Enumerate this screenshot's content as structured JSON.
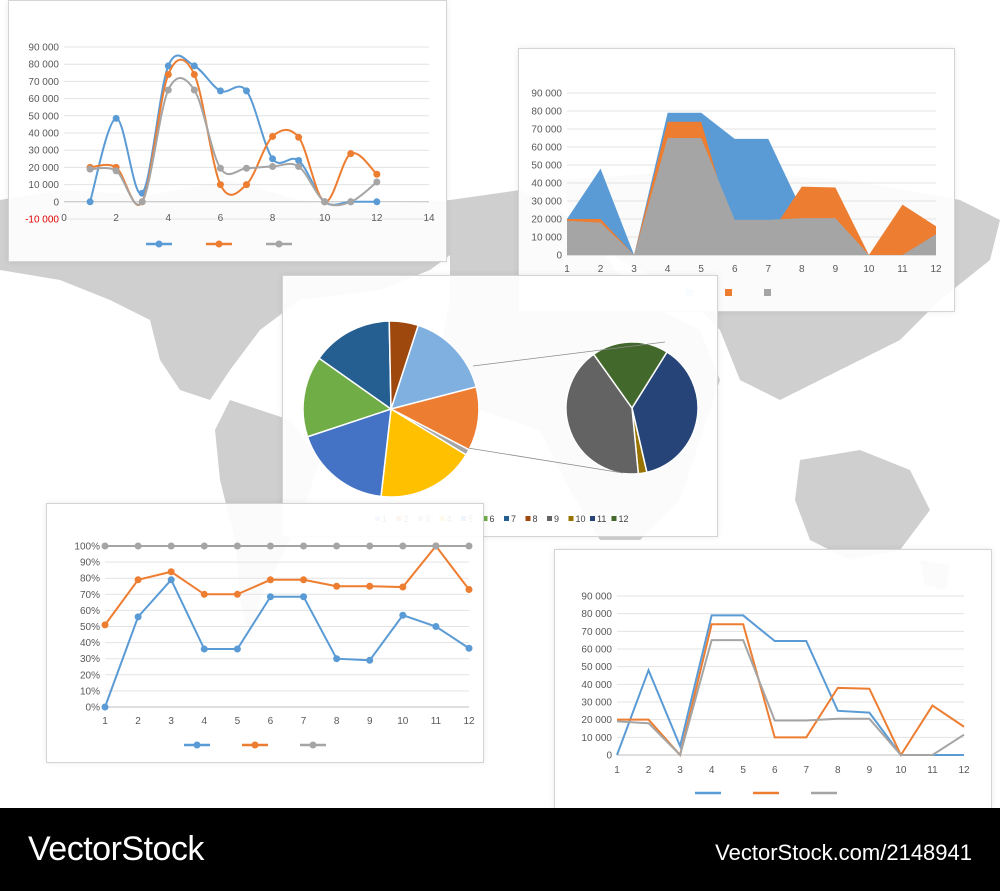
{
  "footer": {
    "brand": "VectorStock",
    "credit": "VectorStock.com/2148941"
  },
  "colors": {
    "blue": "#5b9bd5",
    "orange": "#ed7d31",
    "gray": "#a5a5a5"
  },
  "chart_data": [
    {
      "id": "smooth",
      "type": "scatter",
      "smooth": true,
      "x": [
        1,
        2,
        3,
        4,
        5,
        6,
        7,
        8,
        9,
        10,
        11,
        12
      ],
      "series": [
        {
          "name": "blue",
          "values": [
            0,
            48500,
            5000,
            79000,
            79000,
            64500,
            64500,
            25000,
            24000,
            0,
            0,
            0
          ]
        },
        {
          "name": "orange",
          "values": [
            20000,
            20000,
            0,
            74000,
            74000,
            10000,
            10000,
            38000,
            37500,
            0,
            28000,
            16000
          ]
        },
        {
          "name": "gray",
          "values": [
            19000,
            18000,
            0,
            65000,
            65000,
            19500,
            19500,
            20500,
            20500,
            0,
            0,
            11500
          ]
        }
      ],
      "xlim": [
        0,
        14
      ],
      "xticks": [
        "0",
        "2",
        "4",
        "6",
        "8",
        "10",
        "12",
        "14"
      ],
      "ylim": [
        -10000,
        90000
      ],
      "yticks": [
        "-10 000",
        "0",
        "10 000",
        "20 000",
        "30 000",
        "40 000",
        "50 000",
        "60 000",
        "70 000",
        "80 000",
        "90 000"
      ],
      "grid": true,
      "legend": [
        "",
        "",
        ""
      ]
    },
    {
      "id": "area",
      "type": "area",
      "categories": [
        "1",
        "2",
        "3",
        "4",
        "5",
        "6",
        "7",
        "8",
        "9",
        "10",
        "11",
        "12"
      ],
      "series": [
        {
          "name": "blue",
          "values": [
            20000,
            48000,
            0,
            79000,
            79000,
            64500,
            64500,
            25000,
            24000,
            0,
            0,
            0
          ]
        },
        {
          "name": "orange",
          "values": [
            20000,
            20000,
            0,
            74000,
            74000,
            10000,
            10000,
            38000,
            37500,
            0,
            28000,
            16000
          ]
        },
        {
          "name": "gray",
          "values": [
            19000,
            18000,
            0,
            65000,
            65000,
            19500,
            19500,
            20500,
            20500,
            0,
            0,
            11500
          ]
        }
      ],
      "ylim": [
        0,
        90000
      ],
      "yticks": [
        "0",
        "10 000",
        "20 000",
        "30 000",
        "40 000",
        "50 000",
        "60 000",
        "70 000",
        "80 000",
        "90 000"
      ],
      "grid": true,
      "legend": [
        "",
        "",
        ""
      ]
    },
    {
      "id": "pie",
      "type": "pie",
      "labels": [
        "1",
        "2",
        "3",
        "4",
        "5",
        "6",
        "7",
        "8",
        "9",
        "10",
        "11",
        "12"
      ],
      "colors": [
        "#7fb0e0",
        "#ed7d31",
        "#a5a5a5",
        "#ffc000",
        "#4472c4",
        "#70ad47",
        "#255e91",
        "#9e480e",
        "#636363",
        "#997300",
        "#264478",
        "#43682b"
      ],
      "main_values": [
        15,
        11,
        1,
        17,
        17,
        14,
        14,
        5
      ],
      "sub_values": [
        36,
        2,
        40,
        18
      ],
      "legend": [
        "1",
        "2",
        "3",
        "4",
        "5",
        "6",
        "7",
        "8",
        "9",
        "10",
        "11",
        "12"
      ]
    },
    {
      "id": "percent",
      "type": "line",
      "categories": [
        "1",
        "2",
        "3",
        "4",
        "5",
        "6",
        "7",
        "8",
        "9",
        "10",
        "11",
        "12"
      ],
      "series": [
        {
          "name": "blue",
          "values": [
            0,
            56,
            79,
            36,
            36,
            68.5,
            68.5,
            30,
            29,
            57,
            50,
            36.5
          ]
        },
        {
          "name": "orange",
          "values": [
            51,
            79,
            84,
            70,
            70,
            79,
            79,
            75,
            75,
            74.5,
            100,
            73
          ]
        },
        {
          "name": "gray",
          "values": [
            100,
            100,
            100,
            100,
            100,
            100,
            100,
            100,
            100,
            100,
            100,
            100
          ]
        }
      ],
      "ylim": [
        0,
        100
      ],
      "yticks": [
        "0%",
        "10%",
        "20%",
        "30%",
        "40%",
        "50%",
        "60%",
        "70%",
        "80%",
        "90%",
        "100%"
      ],
      "grid": true,
      "markers": true,
      "legend": [
        "",
        "",
        ""
      ]
    },
    {
      "id": "plain",
      "type": "line",
      "categories": [
        "1",
        "2",
        "3",
        "4",
        "5",
        "6",
        "7",
        "8",
        "9",
        "10",
        "11",
        "12"
      ],
      "series": [
        {
          "name": "blue",
          "values": [
            0,
            48000,
            5000,
            79000,
            79000,
            64500,
            64500,
            25000,
            24000,
            0,
            0,
            0
          ]
        },
        {
          "name": "orange",
          "values": [
            20000,
            20000,
            0,
            74000,
            74000,
            10000,
            10000,
            38000,
            37500,
            0,
            28000,
            16000
          ]
        },
        {
          "name": "gray",
          "values": [
            19000,
            18000,
            0,
            65000,
            65000,
            19500,
            19500,
            20500,
            20500,
            0,
            0,
            11500
          ]
        }
      ],
      "ylim": [
        0,
        90000
      ],
      "yticks": [
        "0",
        "10 000",
        "20 000",
        "30 000",
        "40 000",
        "50 000",
        "60 000",
        "70 000",
        "80 000",
        "90 000"
      ],
      "grid": true,
      "markers": false,
      "legend": [
        "",
        "",
        ""
      ]
    }
  ]
}
